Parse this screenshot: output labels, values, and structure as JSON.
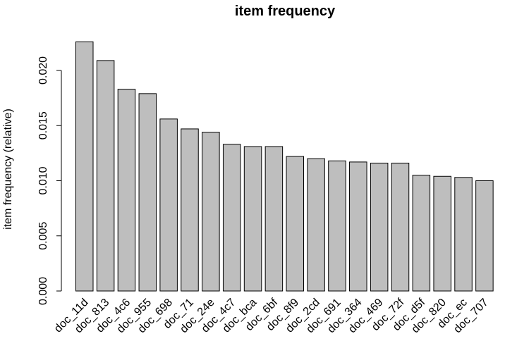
{
  "chart_data": {
    "type": "bar",
    "title": "item frequency",
    "xlabel": "",
    "ylabel": "item frequency (relative)",
    "ylim": [
      0,
      0.0225
    ],
    "yticks": [
      "0.000",
      "0.005",
      "0.010",
      "0.015",
      "0.020"
    ],
    "categories": [
      "doc_11d",
      "doc_813",
      "doc_4c6",
      "doc_955",
      "doc_698",
      "doc_71",
      "doc_24e",
      "doc_4c7",
      "doc_bca",
      "doc_6bf",
      "doc_8f9",
      "doc_2cd",
      "doc_691",
      "doc_364",
      "doc_469",
      "doc_72f",
      "doc_d5f",
      "doc_820",
      "doc_ec",
      "doc_707"
    ],
    "values": [
      0.0226,
      0.0209,
      0.0183,
      0.0179,
      0.0156,
      0.0147,
      0.0144,
      0.0133,
      0.0131,
      0.0131,
      0.0122,
      0.012,
      0.0118,
      0.0117,
      0.0116,
      0.0116,
      0.0105,
      0.0104,
      0.0103,
      0.01
    ],
    "colors": {
      "bar_fill": "#bebebe",
      "bar_stroke": "#000000"
    },
    "grid": false,
    "legend": "none"
  }
}
